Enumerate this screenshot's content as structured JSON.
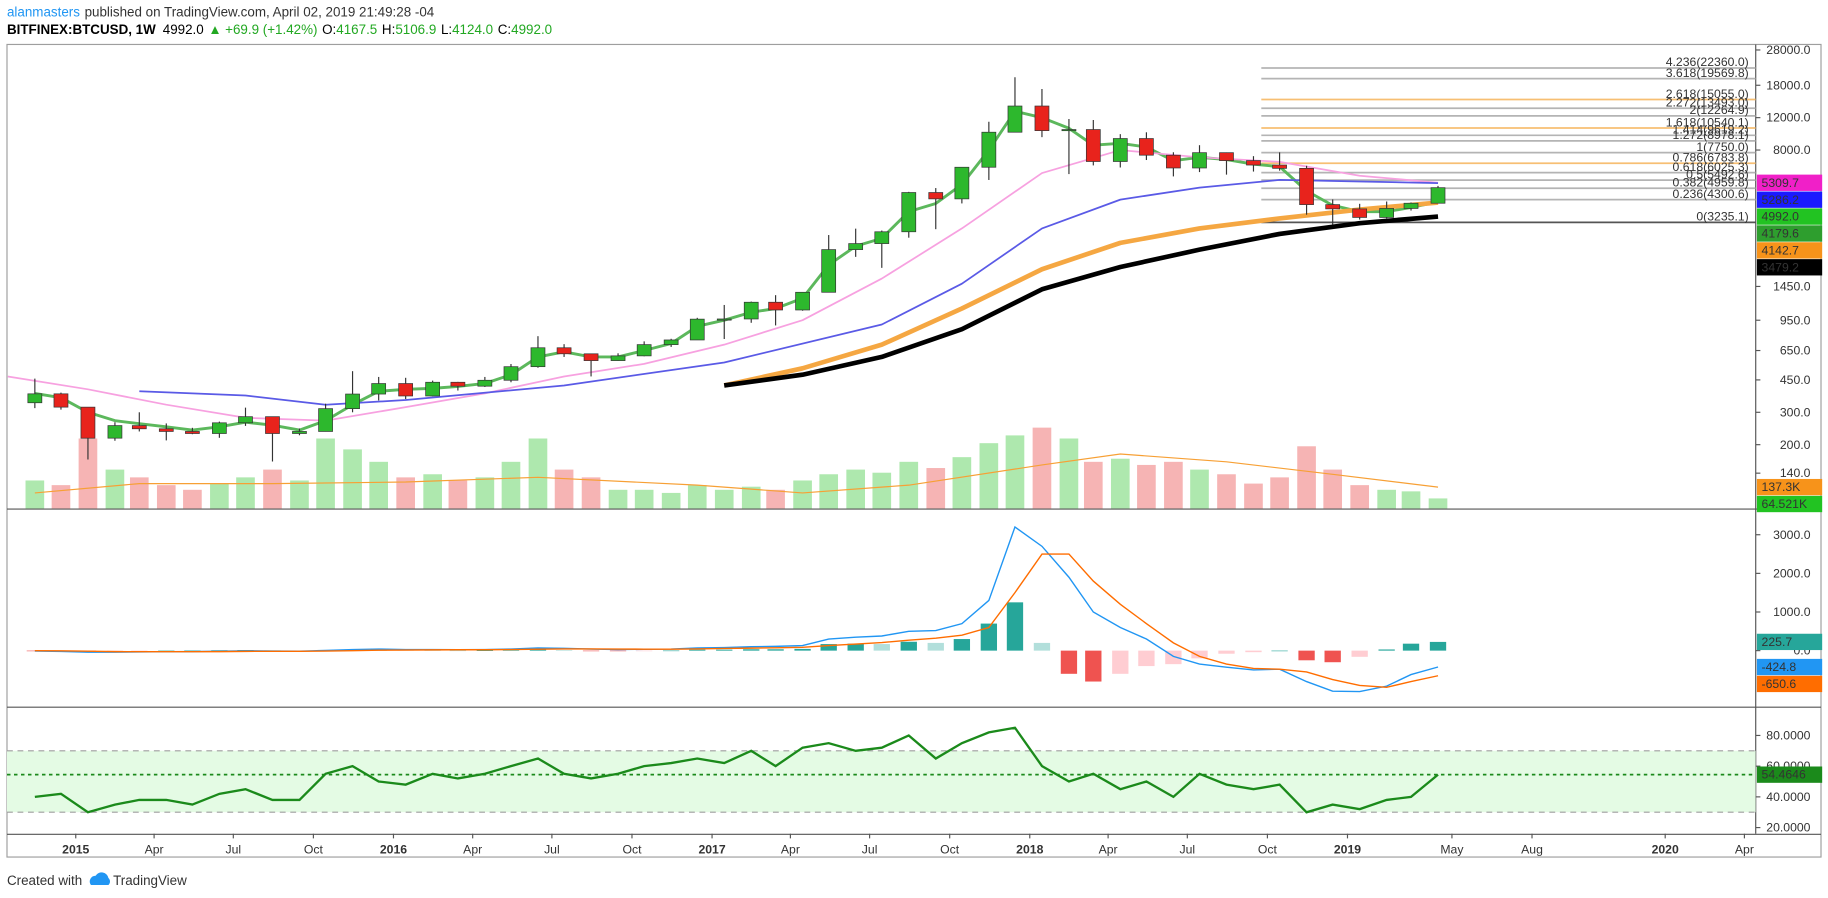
{
  "header": {
    "author": "alanmasters",
    "published": "published on TradingView.com, April 02, 2019 21:49:28 -04",
    "symbol": "BITFINEX:BTCUSD, 1W",
    "last": "4992.0",
    "arrow": "▲",
    "change": "+69.9 (+1.42%)",
    "open_label": "O:",
    "open": "4167.5",
    "high_label": "H:",
    "high": "5106.9",
    "low_label": "L:",
    "low": "4124.0",
    "close_label": "C:",
    "close": "4992.0"
  },
  "footer": {
    "created": "Created with",
    "brand": "TradingView"
  },
  "time_axis": {
    "xlim": [
      "2014-10-14",
      "2020-04-14"
    ],
    "xticks": [
      {
        "value": "2015-01-01",
        "label": "2015"
      },
      {
        "value": "2015-04-01",
        "label": "Apr"
      },
      {
        "value": "2015-07-01",
        "label": "Jul"
      },
      {
        "value": "2015-10-01",
        "label": "Oct"
      },
      {
        "value": "2016-01-01",
        "label": "2016"
      },
      {
        "value": "2016-04-01",
        "label": "Apr"
      },
      {
        "value": "2016-07-01",
        "label": "Jul"
      },
      {
        "value": "2016-10-01",
        "label": "Oct"
      },
      {
        "value": "2017-01-01",
        "label": "2017"
      },
      {
        "value": "2017-04-01",
        "label": "Apr"
      },
      {
        "value": "2017-07-01",
        "label": "Jul"
      },
      {
        "value": "2017-10-01",
        "label": "Oct"
      },
      {
        "value": "2018-01-01",
        "label": "2018"
      },
      {
        "value": "2018-04-01",
        "label": "Apr"
      },
      {
        "value": "2018-07-01",
        "label": "Jul"
      },
      {
        "value": "2018-10-01",
        "label": "Oct"
      },
      {
        "value": "2019-01-01",
        "label": "2019"
      },
      {
        "value": "2019-05-01",
        "label": "May"
      },
      {
        "value": "2019-08-01",
        "label": "Aug"
      },
      {
        "value": "2020-01-01",
        "label": "2020"
      },
      {
        "value": "2020-04-01",
        "label": "Apr"
      }
    ]
  },
  "chart_data": [
    {
      "type": "candlestick",
      "log_scale": true,
      "ylim": [
        90,
        30000
      ],
      "yticks": [
        {
          "value": 28000,
          "label": "28000.0"
        },
        {
          "value": 18000,
          "label": "18000.0"
        },
        {
          "value": 12000,
          "label": "12000.0"
        },
        {
          "value": 8000,
          "label": "8000.0"
        },
        {
          "value": 1450,
          "label": "1450.0"
        },
        {
          "value": 950,
          "label": "950.0"
        },
        {
          "value": 650,
          "label": "650.0"
        },
        {
          "value": 450,
          "label": "450.0"
        },
        {
          "value": 300,
          "label": "300.0"
        },
        {
          "value": 200,
          "label": "200.0"
        },
        {
          "value": 140,
          "label": "140.0"
        }
      ],
      "x": [
        "2014-11",
        "2014-12",
        "2015-01",
        "2015-02",
        "2015-03",
        "2015-04",
        "2015-05",
        "2015-06",
        "2015-07",
        "2015-08",
        "2015-09",
        "2015-10",
        "2015-11",
        "2015-12",
        "2016-01",
        "2016-02",
        "2016-03",
        "2016-04",
        "2016-05",
        "2016-06",
        "2016-07",
        "2016-08",
        "2016-09",
        "2016-10",
        "2016-11",
        "2016-12",
        "2017-01",
        "2017-02",
        "2017-03",
        "2017-04",
        "2017-05",
        "2017-06",
        "2017-07",
        "2017-08",
        "2017-09",
        "2017-10",
        "2017-11",
        "2017-12",
        "2018-01",
        "2018-02",
        "2018-03",
        "2018-04",
        "2018-05",
        "2018-06",
        "2018-07",
        "2018-08",
        "2018-09",
        "2018-10",
        "2018-11",
        "2018-12",
        "2019-01",
        "2019-02",
        "2019-03",
        "2019-04"
      ],
      "open": [
        338,
        378,
        320,
        217,
        254,
        244,
        236,
        230,
        263,
        284,
        230,
        236,
        314,
        377,
        430,
        368,
        437,
        416,
        448,
        531,
        673,
        624,
        573,
        608,
        700,
        742,
        963,
        965,
        1190,
        1080,
        1348,
        2300,
        2480,
        2875,
        4700,
        4340,
        6450,
        10000,
        13880,
        10200,
        10340,
        6930,
        9240,
        7500,
        6390,
        7740,
        7010,
        6630,
        6360,
        4040,
        3830,
        3440,
        3850,
        4110
      ],
      "high": [
        457,
        384,
        320,
        265,
        300,
        261,
        247,
        267,
        318,
        284,
        245,
        334,
        502,
        467,
        462,
        446,
        439,
        467,
        549,
        778,
        704,
        626,
        628,
        729,
        753,
        979,
        1150,
        1200,
        1300,
        1350,
        2760,
        2990,
        2920,
        4740,
        4970,
        6470,
        11400,
        19890,
        17170,
        11790,
        11650,
        9760,
        9990,
        7780,
        8500,
        7760,
        7410,
        7770,
        6570,
        4310,
        4080,
        4200,
        4150,
        5107
      ],
      "low": [
        316,
        310,
        166,
        210,
        236,
        211,
        228,
        218,
        253,
        162,
        225,
        236,
        300,
        348,
        354,
        367,
        394,
        412,
        437,
        524,
        600,
        470,
        571,
        605,
        680,
        742,
        751,
        920,
        890,
        1070,
        1345,
        2100,
        1830,
        2670,
        2970,
        4100,
        5500,
        10000,
        9400,
        5920,
        6600,
        6430,
        7060,
        5750,
        6070,
        5880,
        6110,
        6180,
        3560,
        3150,
        3350,
        3400,
        3750,
        4100
      ],
      "close": [
        378,
        320,
        217,
        254,
        244,
        236,
        230,
        263,
        284,
        230,
        236,
        314,
        377,
        430,
        368,
        437,
        416,
        448,
        531,
        673,
        624,
        573,
        608,
        700,
        742,
        963,
        965,
        1190,
        1080,
        1348,
        2300,
        2480,
        2875,
        4700,
        4340,
        6450,
        10000,
        13880,
        10200,
        10340,
        6930,
        9240,
        7500,
        6390,
        7740,
        7010,
        6630,
        6360,
        4040,
        3830,
        3440,
        3850,
        4110,
        4992
      ],
      "up_color": "#2db82d",
      "down_color": "#e8231c",
      "last_label": "4992.0",
      "label_color": "#22c322",
      "moving_averages": [
        {
          "color": "#5cb85c",
          "width": 2.5,
          "values": [
            380,
            360,
            300,
            270,
            260,
            250,
            240,
            250,
            265,
            255,
            240,
            270,
            330,
            390,
            400,
            405,
            415,
            430,
            480,
            600,
            640,
            600,
            600,
            650,
            710,
            880,
            950,
            1050,
            1100,
            1250,
            1900,
            2400,
            2650,
            3700,
            4100,
            5200,
            8000,
            13000,
            12000,
            10500,
            8500,
            8700,
            8300,
            7000,
            7300,
            7100,
            6700,
            6500,
            4800,
            4000,
            3700,
            3700,
            3900,
            4179.6
          ],
          "last_label": "4179.6",
          "label_color": "#2e9e2e"
        },
        {
          "color": "#f7a1e0",
          "width": 1.5,
          "x": [
            "2014-10",
            "2015-01",
            "2015-04",
            "2015-07",
            "2015-10",
            "2016-01",
            "2016-04",
            "2016-07",
            "2016-10",
            "2017-01",
            "2017-04",
            "2017-07",
            "2017-10",
            "2018-01",
            "2018-04",
            "2018-07",
            "2018-10",
            "2019-01",
            "2019-04"
          ],
          "values": [
            470,
            400,
            330,
            280,
            270,
            320,
            380,
            470,
            550,
            700,
            950,
            1600,
            3000,
            6000,
            8000,
            7300,
            6900,
            5800,
            5309.7
          ],
          "last_label": "5309.7",
          "label_color": "#f020c8"
        },
        {
          "color": "#5a5ae6",
          "width": 1.5,
          "x": [
            "2015-03",
            "2015-07",
            "2015-10",
            "2016-01",
            "2016-07",
            "2017-01",
            "2017-07",
            "2017-10",
            "2018-01",
            "2018-04",
            "2018-07",
            "2018-10",
            "2019-01",
            "2019-04"
          ],
          "values": [
            390,
            370,
            330,
            350,
            420,
            560,
            900,
            1500,
            3000,
            4300,
            5000,
            5500,
            5400,
            5286.2
          ],
          "last_label": "5286.2",
          "label_color": "#1a1aff"
        },
        {
          "color": "#f5a742",
          "width": 4,
          "x": [
            "2017-01",
            "2017-04",
            "2017-07",
            "2017-10",
            "2018-01",
            "2018-04",
            "2018-07",
            "2018-10",
            "2019-01",
            "2019-04"
          ],
          "values": [
            420,
            520,
            700,
            1100,
            1800,
            2500,
            3000,
            3400,
            3800,
            4142.7
          ],
          "last_label": "4142.7",
          "label_color": "#f7931a"
        },
        {
          "color": "#000000",
          "width": 4,
          "x": [
            "2017-01",
            "2017-04",
            "2017-07",
            "2017-10",
            "2018-01",
            "2018-04",
            "2018-07",
            "2018-10",
            "2019-01",
            "2019-04"
          ],
          "values": [
            420,
            480,
            600,
            850,
            1400,
            1850,
            2300,
            2800,
            3200,
            3479.2
          ],
          "last_label": "3479.2",
          "label_color": "#000000"
        }
      ],
      "fib": {
        "start": "2018-09-24",
        "levels": [
          {
            "value": 22360.0,
            "label": "4.236(22360.0)",
            "color": "#b4b4b4"
          },
          {
            "value": 19569.8,
            "label": "3.618(19569.8)",
            "color": "#b4b4b4"
          },
          {
            "value": 15055.0,
            "label": "2.618(15055.0)",
            "color": "#f7bf73"
          },
          {
            "value": 13493.0,
            "label": "2.272(13493.0)",
            "color": "#b4b4b4"
          },
          {
            "value": 12264.9,
            "label": "2(12264.9)",
            "color": "#b4b4b4"
          },
          {
            "value": 10540.1,
            "label": "1.618(10540.1)",
            "color": "#f7bf73"
          },
          {
            "value": 9619.2,
            "label": "1.414(9619.2)",
            "color": "#b4b4b4"
          },
          {
            "value": 8978.1,
            "label": "1.272(8978.1)",
            "color": "#b4b4b4"
          },
          {
            "value": 7750.0,
            "label": "1(7750.0)",
            "color": "#b4b4b4"
          },
          {
            "value": 6783.8,
            "label": "0.786(6783.8)",
            "color": "#f7bf73"
          },
          {
            "value": 6025.3,
            "label": "0.618(6025.3)",
            "color": "#b4b4b4"
          },
          {
            "value": 5492.6,
            "label": "0.5(5492.6)",
            "color": "#b4b4b4"
          },
          {
            "value": 4959.8,
            "label": "0.382(4959.8)",
            "color": "#b4b4b4"
          },
          {
            "value": 4300.6,
            "label": "0.236(4300.6)",
            "color": "#b4b4b4"
          },
          {
            "value": 3235.1,
            "label": "0(3235.1)",
            "color": "#555555"
          }
        ]
      },
      "volume": {
        "ylim": [
          0,
          600
        ],
        "values": [
          180,
          150,
          450,
          250,
          200,
          150,
          120,
          160,
          200,
          250,
          180,
          450,
          380,
          300,
          200,
          220,
          180,
          200,
          300,
          450,
          250,
          200,
          120,
          120,
          100,
          150,
          120,
          140,
          120,
          180,
          220,
          250,
          230,
          300,
          260,
          330,
          420,
          470,
          520,
          450,
          300,
          320,
          280,
          300,
          250,
          220,
          160,
          200,
          400,
          250,
          150,
          120,
          110,
          64.521
        ],
        "up_color": "#aee8ae",
        "down_color": "#f6b4b4",
        "last_label": "64.521K",
        "label_color": "#22c322",
        "ma": {
          "color": "#f7a035",
          "x": [
            "2014-11",
            "2015-03",
            "2015-08",
            "2016-01",
            "2016-06",
            "2016-12",
            "2017-04",
            "2017-08",
            "2018-01",
            "2018-04",
            "2018-08",
            "2018-12",
            "2019-04"
          ],
          "values": [
            100,
            160,
            160,
            170,
            200,
            150,
            100,
            150,
            280,
            350,
            300,
            220,
            137.3
          ],
          "last_label": "137.3K",
          "label_color": "#f7931a"
        }
      }
    },
    {
      "type": "macd",
      "ylim": [
        -1450,
        3650
      ],
      "yticks": [
        {
          "value": 3000,
          "label": "3000.0"
        },
        {
          "value": 2000,
          "label": "2000.0"
        },
        {
          "value": 1000,
          "label": "1000.0"
        },
        {
          "value": 0,
          "label": "0.0"
        }
      ],
      "histogram": {
        "values": [
          -10,
          -15,
          -25,
          -15,
          -5,
          0,
          3,
          10,
          15,
          8,
          2,
          17,
          30,
          30,
          15,
          10,
          3,
          6,
          12,
          32,
          16,
          -3,
          -10,
          -3,
          2,
          25,
          25,
          35,
          35,
          45,
          170,
          180,
          170,
          230,
          200,
          300,
          700,
          1250,
          200,
          -600,
          -800,
          -600,
          -400,
          -350,
          -200,
          -80,
          -40,
          0,
          -250,
          -300,
          -160,
          30,
          180,
          225.7
        ],
        "colors": [
          "#26a69a",
          "#b2dfdb",
          "#ef5350",
          "#ffcdd2"
        ],
        "last_label": "225.7",
        "label_color": "#26a69a"
      },
      "series": [
        {
          "color": "#2196f3",
          "values": [
            -10,
            -20,
            -40,
            -40,
            -35,
            -30,
            -25,
            -15,
            -5,
            -10,
            -15,
            5,
            30,
            40,
            30,
            30,
            25,
            30,
            40,
            70,
            60,
            40,
            30,
            35,
            40,
            70,
            80,
            100,
            110,
            130,
            300,
            350,
            380,
            500,
            520,
            700,
            1300,
            3200,
            2700,
            1900,
            1000,
            600,
            300,
            -150,
            -350,
            -430,
            -500,
            -480,
            -800,
            -1050,
            -1060,
            -920,
            -620,
            -424.8
          ],
          "last_label": "-424.8"
        },
        {
          "color": "#ff6d00",
          "values": [
            0,
            -5,
            -15,
            -25,
            -30,
            -30,
            -28,
            -25,
            -20,
            -18,
            -17,
            -12,
            0,
            10,
            15,
            20,
            22,
            24,
            28,
            38,
            44,
            43,
            40,
            38,
            38,
            45,
            55,
            65,
            75,
            85,
            130,
            170,
            210,
            270,
            320,
            400,
            600,
            1500,
            2500,
            2500,
            1800,
            1200,
            700,
            200,
            -150,
            -350,
            -460,
            -480,
            -550,
            -750,
            -900,
            -950,
            -800,
            -650.6
          ],
          "last_label": "-650.6"
        }
      ]
    },
    {
      "type": "rsi",
      "ylim": [
        16,
        98
      ],
      "yticks": [
        {
          "value": 80,
          "label": "80.0000"
        },
        {
          "value": 60,
          "label": "60.0000"
        },
        {
          "value": 40,
          "label": "40.0000"
        },
        {
          "value": 20,
          "label": "20.0000"
        }
      ],
      "values": [
        40,
        42,
        30,
        35,
        38,
        38,
        35,
        42,
        45,
        38,
        38,
        55,
        60,
        50,
        48,
        55,
        52,
        55,
        60,
        65,
        55,
        52,
        55,
        60,
        62,
        65,
        62,
        70,
        60,
        72,
        75,
        70,
        72,
        80,
        65,
        75,
        82,
        85,
        60,
        50,
        55,
        45,
        50,
        40,
        55,
        48,
        45,
        48,
        30,
        35,
        32,
        38,
        40,
        54.4646
      ],
      "color": "#1b8a1b",
      "bands": [
        30,
        70
      ],
      "band_fill": "#e4fbe4",
      "band_color": "#9e9e9e",
      "last_label": "54.4646",
      "label_color": "#1b8a1b"
    }
  ]
}
